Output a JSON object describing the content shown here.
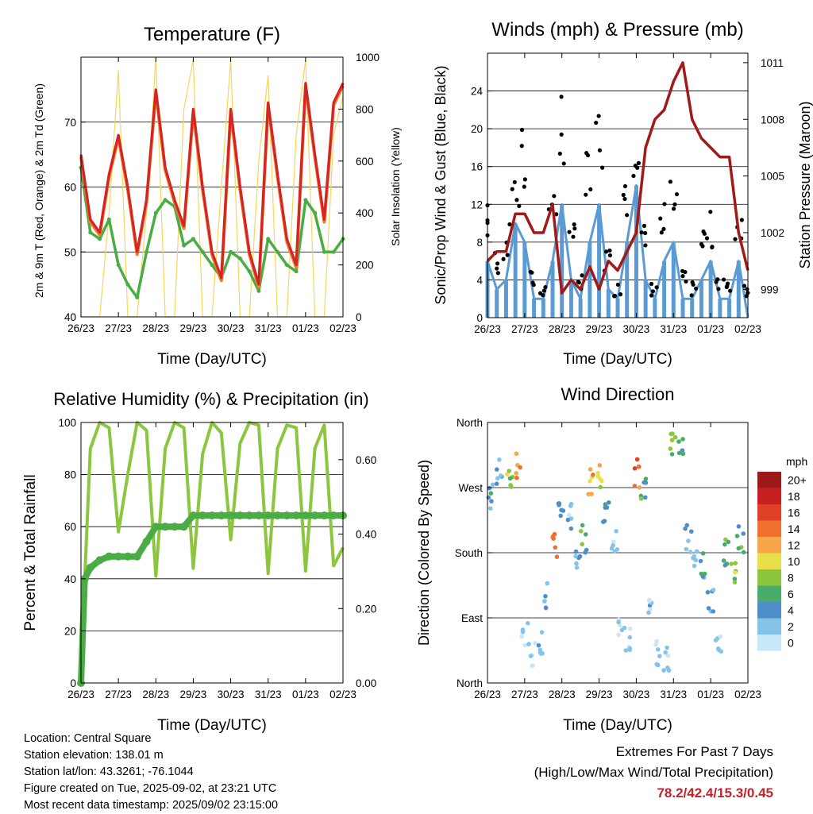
{
  "colors": {
    "temp_2m": "#d42424",
    "temp_9m": "#f07f2a",
    "dewpoint": "#4aac44",
    "solar": "#f7d65a",
    "wind": "#5a9bd4",
    "gust": "#000000",
    "pressure": "#a01a1a",
    "rh": "#8cc63f",
    "precip": "#4aac44",
    "extremes_text": "#c8202a"
  },
  "time_ticks": [
    "26/23",
    "27/23",
    "28/23",
    "29/23",
    "30/23",
    "31/23",
    "01/23",
    "02/23"
  ],
  "charts": {
    "temperature": {
      "title": "Temperature (F)",
      "xlabel": "Time (Day/UTC)",
      "ylabel_left": "2m & 9m T (Red, Orange) & 2m Td (Green)",
      "ylabel_right": "Solar Insolation (Yellow)",
      "left_ticks": [
        "40",
        "50",
        "60",
        "70"
      ],
      "right_ticks": [
        "0",
        "200",
        "400",
        "600",
        "800",
        "1000"
      ]
    },
    "winds": {
      "title": "Winds (mph) & Pressure (mb)",
      "xlabel": "Time (Day/UTC)",
      "ylabel_left": "Sonic/Prop Wind & Gust (Blue, Black)",
      "ylabel_right": "Station Pressure (Maroon)",
      "left_ticks": [
        "0",
        "4",
        "8",
        "12",
        "16",
        "20",
        "24"
      ],
      "right_ticks": [
        "999",
        "1002",
        "1005",
        "1008",
        "1011"
      ]
    },
    "humidity": {
      "title": "Relative Humidity (%) & Precipitation (in)",
      "xlabel": "Time (Day/UTC)",
      "ylabel_left": "Percent & Total Rainfall",
      "left_ticks": [
        "0",
        "20",
        "40",
        "60",
        "80",
        "100"
      ],
      "right_ticks": [
        "0.00",
        "0.20",
        "0.40",
        "0.60"
      ]
    },
    "direction": {
      "title": "Wind Direction",
      "xlabel": "Time (Day/UTC)",
      "ylabel_left": "Direction (Colored By Speed)",
      "left_ticks": [
        "North",
        "East",
        "South",
        "West",
        "North"
      ],
      "legend_title": "mph",
      "legend_labels": [
        "0",
        "2",
        "4",
        "6",
        "8",
        "10",
        "12",
        "14",
        "16",
        "18",
        "20+"
      ],
      "legend_colors": [
        "#c6e8f7",
        "#86c3ea",
        "#4f8fc9",
        "#4aac6a",
        "#8cc63f",
        "#e8e04a",
        "#f7a74a",
        "#f07030",
        "#e04028",
        "#c82020",
        "#9c1a1a"
      ]
    }
  },
  "chart_data": [
    {
      "type": "line",
      "title": "Temperature (F)",
      "xlabel": "Time (Day/UTC)",
      "ylabel": "2m & 9m T (Red, Orange) & 2m Td (Green)",
      "ylim": [
        40,
        80
      ],
      "y2lim": [
        0,
        1000
      ],
      "x": [
        0,
        0.25,
        0.5,
        0.75,
        1,
        1.25,
        1.5,
        1.75,
        2,
        2.25,
        2.5,
        2.75,
        3,
        3.25,
        3.5,
        3.75,
        4,
        4.25,
        4.5,
        4.75,
        5,
        5.25,
        5.5,
        5.75,
        6,
        6.25,
        6.5,
        6.75,
        7
      ],
      "series": [
        {
          "name": "2m T",
          "axis": "left",
          "values": [
            65,
            55,
            53,
            62,
            68,
            60,
            50,
            58,
            75,
            63,
            58,
            54,
            72,
            60,
            50,
            46,
            72,
            60,
            50,
            45,
            73,
            62,
            52,
            48,
            76,
            65,
            55,
            73,
            76
          ]
        },
        {
          "name": "2m Td",
          "axis": "left",
          "values": [
            63,
            53,
            52,
            55,
            48,
            45,
            43,
            50,
            56,
            58,
            57,
            51,
            52,
            50,
            48,
            46,
            50,
            49,
            47,
            44,
            52,
            50,
            48,
            47,
            58,
            56,
            50,
            50,
            52
          ]
        },
        {
          "name": "Solar Insolation",
          "axis": "right",
          "values": [
            0,
            0,
            0,
            400,
            950,
            0,
            0,
            400,
            1000,
            0,
            0,
            800,
            990,
            0,
            0,
            500,
            990,
            0,
            0,
            600,
            930,
            0,
            0,
            700,
            990,
            0,
            0,
            700,
            850
          ]
        }
      ]
    },
    {
      "type": "line",
      "title": "Winds (mph) & Pressure (mb)",
      "xlabel": "Time (Day/UTC)",
      "ylabel": "Sonic/Prop Wind & Gust (Blue, Black)",
      "ylim": [
        0,
        28
      ],
      "y2lim": [
        997.5,
        1011.5
      ],
      "x": [
        0,
        0.25,
        0.5,
        0.75,
        1,
        1.25,
        1.5,
        1.75,
        2,
        2.25,
        2.5,
        2.75,
        3,
        3.25,
        3.5,
        3.75,
        4,
        4.25,
        4.5,
        4.75,
        5,
        5.25,
        5.5,
        5.75,
        6,
        6.25,
        6.5,
        6.75,
        7
      ],
      "series": [
        {
          "name": "Wind",
          "axis": "left",
          "values": [
            6,
            3,
            4,
            10,
            8,
            2,
            2,
            6,
            12,
            4,
            2,
            8,
            12,
            3,
            2,
            8,
            14,
            4,
            2,
            6,
            8,
            2,
            2,
            4,
            6,
            2,
            2,
            6,
            0
          ]
        },
        {
          "name": "Gust",
          "axis": "left",
          "values": [
            10,
            6,
            8,
            14,
            16,
            4,
            3,
            12,
            20,
            8,
            4,
            14,
            18,
            6,
            3,
            14,
            20,
            8,
            3,
            10,
            12,
            4,
            3,
            8,
            9,
            4,
            3,
            10,
            3
          ]
        },
        {
          "name": "Station Pressure",
          "axis": "right",
          "values": [
            1000.5,
            1001,
            1001,
            1003,
            1003,
            1002,
            1002,
            1003.5,
            998.8,
            999.5,
            999,
            1000.2,
            999,
            1000.5,
            1000,
            1001,
            1002,
            1006.5,
            1008,
            1008.5,
            1010,
            1011,
            1008,
            1007,
            1006.5,
            1006,
            1006,
            1002,
            1000
          ]
        }
      ]
    },
    {
      "type": "line",
      "title": "Relative Humidity (%) & Precipitation (in)",
      "xlabel": "Time (Day/UTC)",
      "ylabel": "Percent & Total Rainfall",
      "ylim": [
        0,
        100
      ],
      "y2lim": [
        0,
        0.7
      ],
      "x": [
        0,
        0.1,
        0.25,
        0.5,
        0.75,
        1,
        1.25,
        1.5,
        1.75,
        2,
        2.25,
        2.5,
        2.75,
        3,
        3.25,
        3.5,
        3.75,
        4,
        4.25,
        4.5,
        4.75,
        5,
        5.25,
        5.5,
        5.75,
        6,
        6.25,
        6.5,
        6.75,
        7
      ],
      "series": [
        {
          "name": "RH",
          "axis": "left",
          "values": [
            20,
            40,
            90,
            100,
            98,
            58,
            80,
            100,
            97,
            41,
            90,
            100,
            98,
            44,
            88,
            100,
            96,
            55,
            92,
            100,
            99,
            42,
            90,
            99,
            98,
            43,
            90,
            99,
            45,
            52
          ]
        },
        {
          "name": "Total Precipitation",
          "axis": "right",
          "values": [
            0,
            0.28,
            0.31,
            0.33,
            0.34,
            0.34,
            0.34,
            0.34,
            0.38,
            0.42,
            0.42,
            0.42,
            0.42,
            0.45,
            0.45,
            0.45,
            0.45,
            0.45,
            0.45,
            0.45,
            0.45,
            0.45,
            0.45,
            0.45,
            0.45,
            0.45,
            0.45,
            0.45,
            0.45,
            0.45
          ]
        }
      ]
    },
    {
      "type": "scatter",
      "title": "Wind Direction",
      "xlabel": "Time (Day/UTC)",
      "ylabel": "Direction (Colored By Speed)",
      "ylim": [
        0,
        360
      ],
      "x": [
        0.1,
        0.3,
        0.6,
        0.8,
        1.0,
        1.2,
        1.4,
        1.6,
        1.8,
        2.0,
        2.2,
        2.4,
        2.6,
        2.8,
        3.0,
        3.2,
        3.4,
        3.6,
        3.8,
        4.0,
        4.2,
        4.4,
        4.6,
        4.8,
        5.0,
        5.2,
        5.4,
        5.6,
        5.8,
        6.0,
        6.2,
        6.4,
        6.6,
        6.8
      ],
      "series": [
        {
          "name": "Direction",
          "values": [
            260,
            290,
            280,
            300,
            70,
            40,
            60,
            120,
            190,
            250,
            230,
            170,
            200,
            280,
            290,
            230,
            200,
            80,
            60,
            290,
            270,
            110,
            40,
            30,
            330,
            320,
            200,
            180,
            160,
            110,
            60,
            180,
            150,
            200
          ]
        },
        {
          "name": "Speed",
          "values": [
            4,
            3,
            8,
            12,
            1,
            1,
            2,
            4,
            14,
            4,
            2,
            4,
            6,
            12,
            10,
            4,
            2,
            1,
            1,
            14,
            6,
            2,
            1,
            1,
            8,
            6,
            3,
            2,
            4,
            4,
            2,
            6,
            8,
            6
          ]
        }
      ]
    }
  ],
  "info": {
    "location": "Location: Central Square",
    "elevation": "Station elevation: 138.01 m",
    "latlon": "Station lat/lon: 43.3261; -76.1044",
    "created": "Figure created on Tue, 2025-09-02, at 23:21 UTC",
    "recent": "Most recent data timestamp: 2025/09/02 23:15:00"
  },
  "extremes": {
    "line1": "Extremes For Past 7 Days",
    "line2": "(High/Low/Max Wind/Total Precipitation)",
    "values": "78.2/42.4/15.3/0.45"
  }
}
